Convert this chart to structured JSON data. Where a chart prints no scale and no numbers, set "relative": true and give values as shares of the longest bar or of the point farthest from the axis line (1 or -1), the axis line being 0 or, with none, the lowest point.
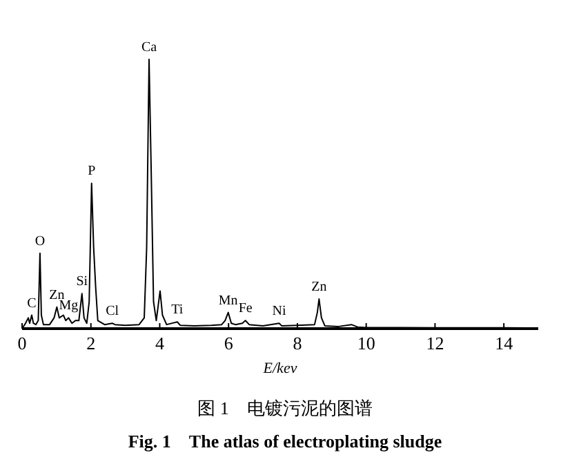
{
  "chart_data": {
    "type": "line",
    "relative": true,
    "title": "图 1　电镀污泥的图谱",
    "subtitle": "Fig. 1　The atlas of electroplating sludge",
    "xlabel": "E/kev",
    "color": "#000000",
    "xlim": [
      0,
      15
    ],
    "xticks": [
      0,
      2,
      4,
      6,
      8,
      10,
      12,
      14
    ],
    "x": [
      0,
      0.1,
      0.18,
      0.22,
      0.28,
      0.33,
      0.4,
      0.47,
      0.52,
      0.56,
      0.62,
      0.8,
      0.93,
      1.01,
      1.08,
      1.2,
      1.27,
      1.35,
      1.45,
      1.55,
      1.65,
      1.74,
      1.8,
      1.88,
      1.95,
      2.02,
      2.08,
      2.14,
      2.2,
      2.4,
      2.62,
      2.7,
      3.0,
      3.4,
      3.55,
      3.62,
      3.69,
      3.75,
      3.82,
      3.9,
      4.01,
      4.08,
      4.2,
      4.51,
      4.6,
      5.0,
      5.5,
      5.8,
      5.9,
      5.99,
      6.08,
      6.2,
      6.4,
      6.49,
      6.6,
      7.0,
      7.47,
      7.55,
      8.0,
      8.5,
      8.58,
      8.63,
      8.7,
      8.8,
      9.2,
      9.57,
      9.75,
      10.0,
      11,
      12,
      13,
      14,
      15
    ],
    "values": [
      0,
      0.02,
      0.04,
      0.02,
      0.05,
      0.02,
      0.015,
      0.03,
      0.28,
      0.05,
      0.015,
      0.015,
      0.04,
      0.08,
      0.04,
      0.05,
      0.03,
      0.04,
      0.02,
      0.03,
      0.03,
      0.13,
      0.04,
      0.02,
      0.1,
      0.54,
      0.3,
      0.15,
      0.03,
      0.015,
      0.02,
      0.015,
      0.012,
      0.015,
      0.04,
      0.3,
      1.0,
      0.6,
      0.1,
      0.03,
      0.14,
      0.05,
      0.015,
      0.025,
      0.012,
      0.01,
      0.012,
      0.015,
      0.03,
      0.06,
      0.02,
      0.015,
      0.02,
      0.03,
      0.015,
      0.01,
      0.02,
      0.01,
      0.012,
      0.015,
      0.06,
      0.11,
      0.04,
      0.01,
      0.008,
      0.015,
      0.006,
      0.004,
      0.004,
      0.003,
      0.003,
      0.003,
      0.002
    ],
    "annotations": [
      {
        "text": "C",
        "x": 0.28,
        "y": 0.05
      },
      {
        "text": "O",
        "x": 0.52,
        "y": 0.28
      },
      {
        "text": "Zn",
        "x": 1.01,
        "y": 0.08
      },
      {
        "text": "Mg",
        "x": 1.35,
        "y": 0.04
      },
      {
        "text": "Si",
        "x": 1.74,
        "y": 0.13
      },
      {
        "text": "P",
        "x": 2.02,
        "y": 0.54
      },
      {
        "text": "Cl",
        "x": 2.62,
        "y": 0.02
      },
      {
        "text": "Ca",
        "x": 3.69,
        "y": 1.0
      },
      {
        "text": "Ti",
        "x": 4.51,
        "y": 0.025
      },
      {
        "text": "Mn",
        "x": 5.99,
        "y": 0.06
      },
      {
        "text": "Fe",
        "x": 6.49,
        "y": 0.03
      },
      {
        "text": "Ni",
        "x": 7.47,
        "y": 0.02
      },
      {
        "text": "Zn",
        "x": 8.63,
        "y": 0.11
      }
    ]
  }
}
